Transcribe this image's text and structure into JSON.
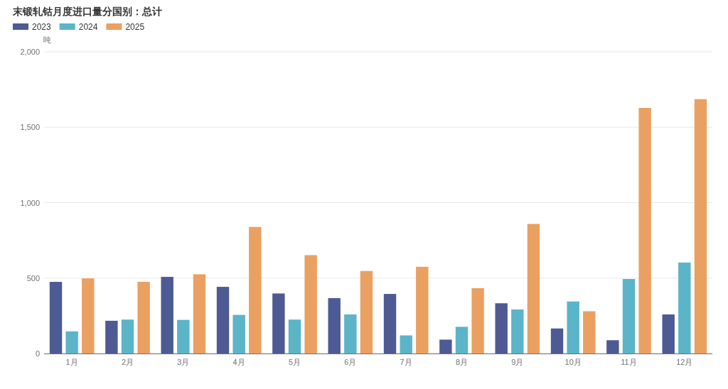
{
  "chart_data": {
    "type": "bar",
    "title": "末锻轧钴月度进口量分国别：总计",
    "ylabel": "吨",
    "categories": [
      "1月",
      "2月",
      "3月",
      "4月",
      "5月",
      "6月",
      "7月",
      "8月",
      "9月",
      "10月",
      "11月",
      "12月"
    ],
    "series": [
      {
        "name": "2023",
        "color": "#4e5a93",
        "values": [
          475,
          217,
          508,
          442,
          398,
          367,
          395,
          92,
          333,
          166,
          88,
          259
        ]
      },
      {
        "name": "2024",
        "color": "#5bb4c8",
        "values": [
          147,
          225,
          223,
          256,
          225,
          259,
          120,
          177,
          292,
          345,
          494,
          603
        ]
      },
      {
        "name": "2025",
        "color": "#eaa061",
        "values": [
          498,
          475,
          525,
          839,
          652,
          547,
          575,
          433,
          859,
          280,
          1628,
          1686
        ]
      }
    ],
    "ylim": [
      0,
      2000
    ],
    "yticks": [
      0,
      500,
      {
        "value": 1000,
        "label": "1,000"
      },
      {
        "value": 1500,
        "label": "1,500"
      },
      {
        "value": 2000,
        "label": "2,000"
      }
    ],
    "grid": "y",
    "legend": "top left"
  }
}
